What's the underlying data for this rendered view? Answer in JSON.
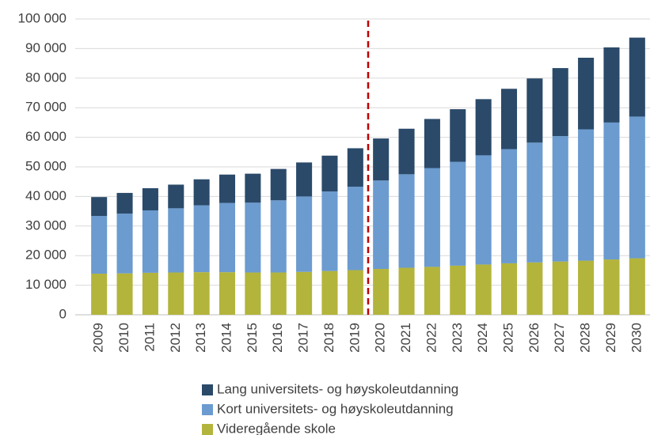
{
  "chart_data": {
    "type": "stacked_bar",
    "categories": [
      "2009",
      "2010",
      "2011",
      "2012",
      "2013",
      "2014",
      "2015",
      "2016",
      "2017",
      "2018",
      "2019",
      "2020",
      "2021",
      "2022",
      "2023",
      "2024",
      "2025",
      "2026",
      "2027",
      "2028",
      "2029",
      "2030"
    ],
    "series": [
      {
        "name": "Videregående skole",
        "color": "#b3b43c",
        "values": [
          13900,
          14000,
          14200,
          14300,
          14400,
          14400,
          14300,
          14300,
          14500,
          14800,
          15100,
          15500,
          15900,
          16200,
          16600,
          17000,
          17400,
          17700,
          18000,
          18300,
          18700,
          19100
        ]
      },
      {
        "name": "Kort universitets- og høyskoleutdanning",
        "color": "#6b9bcf",
        "values": [
          19500,
          20200,
          21100,
          21700,
          22600,
          23400,
          23600,
          24400,
          25500,
          26900,
          28200,
          29900,
          31600,
          33400,
          35100,
          36900,
          38600,
          40500,
          42400,
          44400,
          46300,
          47900
        ]
      },
      {
        "name": "Lang universitets- og høyskoleutdanning",
        "color": "#2b4a6a",
        "values": [
          6400,
          7000,
          7500,
          8000,
          8800,
          9600,
          9800,
          10600,
          11500,
          12100,
          13000,
          14200,
          15400,
          16600,
          17800,
          19000,
          20400,
          21700,
          23000,
          24200,
          25400,
          26700
        ]
      }
    ],
    "ylim": [
      0,
      100000
    ],
    "yticks": [
      0,
      {
        "value": 10000,
        "label": "10 000"
      },
      {
        "value": 20000,
        "label": "20 000"
      },
      {
        "value": 30000,
        "label": "30 000"
      },
      {
        "value": 40000,
        "label": "40 000"
      },
      {
        "value": 50000,
        "label": "50 000"
      },
      {
        "value": 60000,
        "label": "60 000"
      },
      {
        "value": 70000,
        "label": "70 000"
      },
      {
        "value": 80000,
        "label": "80 000"
      },
      {
        "value": 90000,
        "label": "90 000"
      },
      {
        "value": 100000,
        "label": "100 000"
      }
    ],
    "grid": true,
    "legend": "bottom"
  }
}
